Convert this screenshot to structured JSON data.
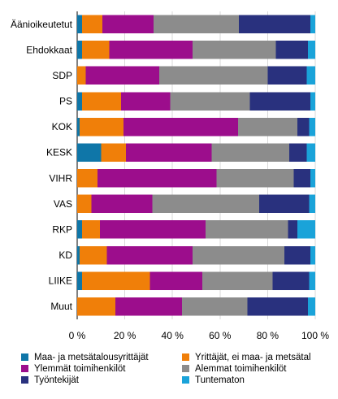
{
  "chart_data": {
    "type": "bar",
    "orientation": "horizontal",
    "stacked": true,
    "categories": [
      "Äänioikeutetut",
      "Ehdokkaat",
      "SDP",
      "PS",
      "KOK",
      "KESK",
      "VIHR",
      "VAS",
      "RKP",
      "KD",
      "LIIKE",
      "Muut"
    ],
    "xlim": [
      0,
      100
    ],
    "xticks": [
      "0 %",
      "20 %",
      "40 %",
      "60 %",
      "80 %",
      "100 %"
    ],
    "grid": true,
    "legend_position": "bottom",
    "series": [
      {
        "name": "Maa- ja metsätalousyrittäjät",
        "color": "#0f76a8",
        "values": [
          2,
          2,
          0,
          2,
          1,
          10,
          0,
          0,
          2,
          1,
          2,
          0
        ]
      },
      {
        "name": "Yrittäjät, ei maa- ja metsätal",
        "color": "#f07f09",
        "values": [
          8.5,
          11.5,
          3.5,
          16.5,
          18.5,
          10.5,
          8.5,
          6,
          7.5,
          11.5,
          28.5,
          16
        ]
      },
      {
        "name": "Ylemmät toimihenkilöt",
        "color": "#9c0d8c",
        "values": [
          21.5,
          35,
          31,
          20.5,
          48,
          36,
          50,
          25.5,
          44.5,
          36,
          22,
          28
        ]
      },
      {
        "name": "Alemmat toimihenkilöt",
        "color": "#8c8c8c",
        "values": [
          36,
          35,
          45.5,
          33.5,
          25,
          32.5,
          32.5,
          45,
          34.5,
          38.5,
          29.5,
          27.5
        ]
      },
      {
        "name": "Työntekijät",
        "color": "#29317e",
        "values": [
          30,
          13.5,
          16.5,
          25.5,
          5,
          7.5,
          7,
          21,
          4,
          11,
          15.5,
          25.5
        ]
      },
      {
        "name": "Tuntematon",
        "color": "#1aa3d9",
        "values": [
          2,
          3,
          3.5,
          2,
          2.5,
          3.5,
          2,
          2.5,
          7.5,
          2,
          2.5,
          3
        ]
      }
    ]
  }
}
